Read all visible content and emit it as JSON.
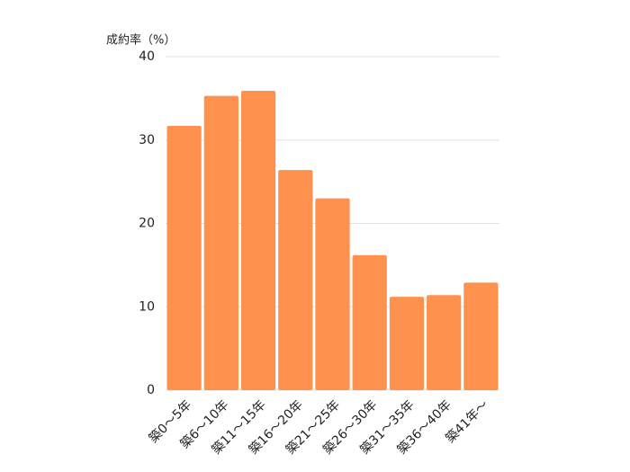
{
  "chart_data": {
    "type": "bar",
    "y_label": "成約率（%）",
    "categories": [
      "築0～5年",
      "築6～10年",
      "築11～15年",
      "築16～20年",
      "築21～25年",
      "築26～30年",
      "築31～35年",
      "築36～40年",
      "築41年～"
    ],
    "values": [
      31.7,
      35.3,
      35.9,
      26.4,
      23.0,
      16.2,
      11.2,
      11.4,
      12.9
    ],
    "color": "#ff914f",
    "ylim": [
      0,
      40
    ],
    "yticks": [
      0,
      10,
      20,
      30,
      40
    ],
    "grid": true
  }
}
